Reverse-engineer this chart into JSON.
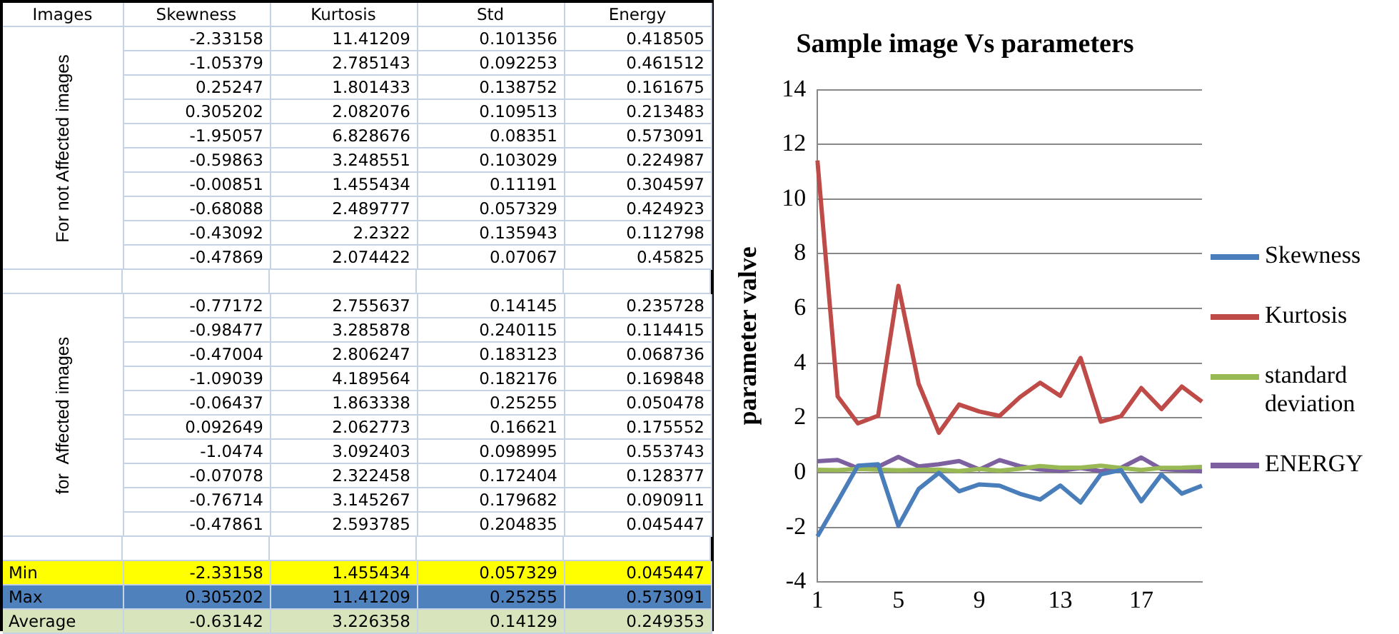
{
  "chart_data": [
    {
      "type": "line",
      "title": "Sample image Vs parameters",
      "ylabel": "parameter valve",
      "categories": [
        "1",
        null,
        null,
        null,
        "5",
        null,
        null,
        null,
        "9",
        null,
        null,
        null,
        "13",
        null,
        null,
        null,
        "17",
        null,
        null,
        null
      ],
      "series": [
        {
          "name": "Skewness",
          "color": "#4a7ebb",
          "values": [
            -2.33158,
            -1.05379,
            0.25247,
            0.305202,
            -1.95057,
            -0.59863,
            -0.00851,
            -0.68088,
            -0.43092,
            -0.47869,
            -0.77172,
            -0.98477,
            -0.47004,
            -1.09039,
            -0.06437,
            0.092649,
            -1.0474,
            -0.07078,
            -0.76714,
            -0.47861
          ]
        },
        {
          "name": "Kurtosis",
          "color": "#be4b48",
          "values": [
            11.41209,
            2.785143,
            1.801433,
            2.082076,
            6.828676,
            3.248551,
            1.455434,
            2.489777,
            2.2322,
            2.074422,
            2.755637,
            3.285878,
            2.806247,
            4.189564,
            1.863338,
            2.062773,
            3.092403,
            2.322458,
            3.145267,
            2.593785
          ]
        },
        {
          "name": "standard deviation",
          "color": "#98b954",
          "values": [
            0.101356,
            0.092253,
            0.138752,
            0.109513,
            0.08351,
            0.103029,
            0.11191,
            0.057329,
            0.135943,
            0.07067,
            0.14145,
            0.240115,
            0.183123,
            0.182176,
            0.25255,
            0.16621,
            0.098995,
            0.172404,
            0.179682,
            0.204835
          ]
        },
        {
          "name": "ENERGY",
          "color": "#7d60a0",
          "values": [
            0.418505,
            0.461512,
            0.161675,
            0.213483,
            0.573091,
            0.224987,
            0.304597,
            0.424923,
            0.112798,
            0.45825,
            0.235728,
            0.114415,
            0.068736,
            0.169848,
            0.050478,
            0.175552,
            0.553743,
            0.128377,
            0.090911,
            0.045447
          ]
        }
      ],
      "ylim": [
        -4,
        14
      ],
      "yticks": [
        -4,
        -2,
        0,
        2,
        4,
        6,
        8,
        10,
        12,
        14
      ],
      "grid": "y",
      "legend": "right",
      "marker": "none",
      "line_style": "solid"
    },
    {
      "type": "other",
      "annotations": [
        "Images",
        "Skewness",
        "Kurtosis",
        "Std",
        "Energy",
        "For not Affected images",
        "-2.33158",
        "11.41209",
        "0.101356",
        "0.418505",
        "-1.05379",
        "2.785143",
        "0.092253",
        "0.461512",
        "0.25247",
        "1.801433",
        "0.138752",
        "0.161675",
        "0.305202",
        "2.082076",
        "0.109513",
        "0.213483",
        "-1.95057",
        "6.828676",
        "0.08351",
        "0.573091",
        "-0.59863",
        "3.248551",
        "0.103029",
        "0.224987",
        "-0.00851",
        "1.455434",
        "0.11191",
        "0.304597",
        "-0.68088",
        "2.489777",
        "0.057329",
        "0.424923",
        "-0.43092",
        "2.2322",
        "0.135943",
        "0.112798",
        "-0.47869",
        "2.074422",
        "0.07067",
        "0.45825",
        "for  Affected images",
        "-0.77172",
        "2.755637",
        "0.14145",
        "0.235728",
        "-0.98477",
        "3.285878",
        "0.240115",
        "0.114415",
        "-0.47004",
        "2.806247",
        "0.183123",
        "0.068736",
        "-1.09039",
        "4.189564",
        "0.182176",
        "0.169848",
        "-0.06437",
        "1.863338",
        "0.25255",
        "0.050478",
        "0.092649",
        "2.062773",
        "0.16621",
        "0.175552",
        "-1.0474",
        "3.092403",
        "0.098995",
        "0.553743",
        "-0.07078",
        "2.322458",
        "0.172404",
        "0.128377",
        "-0.76714",
        "3.145267",
        "0.179682",
        "0.090911",
        "-0.47861",
        "2.593785",
        "0.204835",
        "0.045447",
        "Min",
        "-2.33158",
        "1.455434",
        "0.057329",
        "0.045447",
        "Max",
        "0.305202",
        "11.41209",
        "0.25255",
        "0.573091",
        "Average",
        "-0.63142",
        "3.226358",
        "0.14129",
        "0.249353"
      ],
      "colors": [
        "#ffff00",
        "#4f81bd",
        "#d7e4bc"
      ]
    }
  ]
}
